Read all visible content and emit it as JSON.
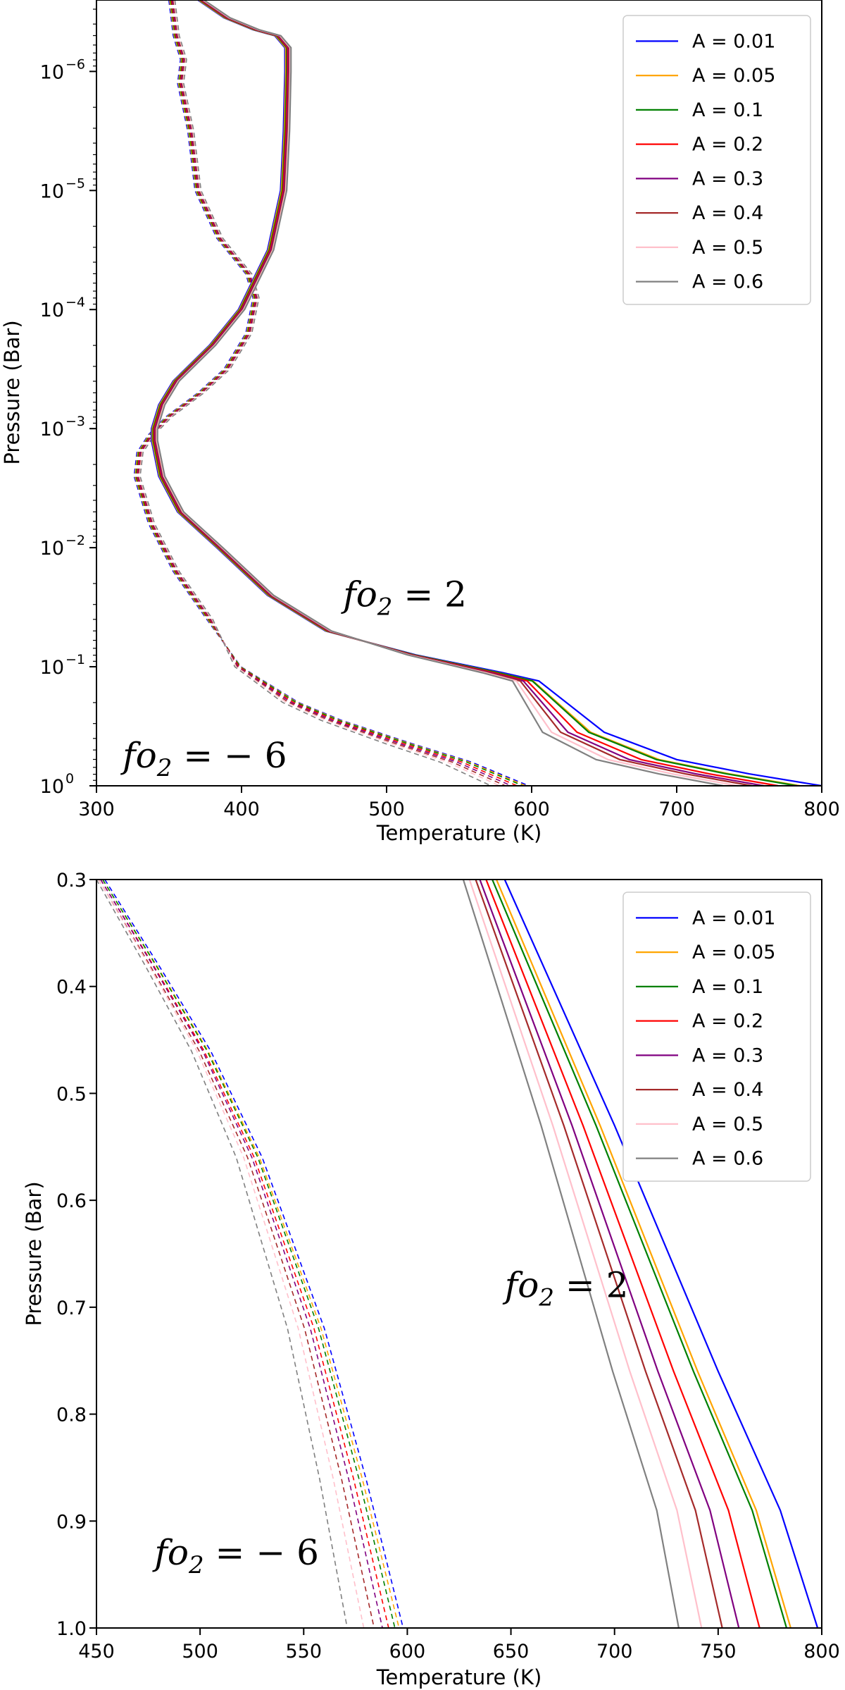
{
  "chart_data": [
    {
      "type": "line",
      "title": "",
      "xlabel": "Temperature (K)",
      "ylabel": "Pressure (Bar)",
      "xlim": [
        300,
        800
      ],
      "ylim_log10": [
        -6.6,
        0
      ],
      "yscale": "log",
      "xticks": [
        "300",
        "400",
        "500",
        "600",
        "700",
        "800"
      ],
      "yticks": [
        {
          "base": "10",
          "exp": "0",
          "log": 0
        },
        {
          "base": "10",
          "exp": "−1",
          "log": -1
        },
        {
          "base": "10",
          "exp": "−2",
          "log": -2
        },
        {
          "base": "10",
          "exp": "−3",
          "log": -3
        },
        {
          "base": "10",
          "exp": "−4",
          "log": -4
        },
        {
          "base": "10",
          "exp": "−5",
          "log": -5
        },
        {
          "base": "10",
          "exp": "−6",
          "log": -6
        }
      ],
      "legend": [
        "A = 0.01",
        "A = 0.05",
        "A = 0.1",
        "A = 0.2",
        "A = 0.3",
        "A = 0.4",
        "A = 0.5",
        "A = 0.6"
      ],
      "legend_position": "top-right",
      "annotations": [
        {
          "base": "fo",
          "sub": "2",
          "rest": " = 2",
          "at_x": 470,
          "at_logp": -1.6
        },
        {
          "base": "fo",
          "sub": "2",
          "rest": " = − 6",
          "at_x": 318,
          "at_logp": -0.25
        }
      ],
      "series_fo2_plus2": {
        "style": "solid",
        "profile": [
          [
            372,
            -6.6
          ],
          [
            390,
            -6.45
          ],
          [
            410,
            -6.35
          ],
          [
            425,
            -6.3
          ],
          [
            432,
            -6.2
          ],
          [
            432,
            -6.0
          ],
          [
            431,
            -5.5
          ],
          [
            429,
            -5.0
          ],
          [
            420,
            -4.5
          ],
          [
            400,
            -4.0
          ],
          [
            380,
            -3.7
          ],
          [
            355,
            -3.4
          ],
          [
            345,
            -3.2
          ],
          [
            340,
            -3.0
          ],
          [
            340,
            -2.9
          ],
          [
            345,
            -2.6
          ],
          [
            358,
            -2.3
          ],
          [
            385,
            -2.0
          ],
          [
            420,
            -1.6
          ],
          [
            460,
            -1.3
          ],
          [
            520,
            -1.1
          ],
          [
            580,
            -0.95
          ],
          [
            605,
            -0.88
          ],
          [
            650,
            -0.45
          ],
          [
            700,
            -0.22
          ],
          [
            750,
            -0.1
          ],
          [
            800,
            0
          ]
        ],
        "end_temperatures_at_1bar": [
          800,
          785,
          783,
          770,
          760,
          752,
          742,
          732
        ]
      },
      "series_fo2_minus6": {
        "style": "dashed",
        "profile": [
          [
            352,
            -6.6
          ],
          [
            355,
            -6.3
          ],
          [
            360,
            -6.1
          ],
          [
            358,
            -5.9
          ],
          [
            365,
            -5.5
          ],
          [
            370,
            -5.0
          ],
          [
            385,
            -4.6
          ],
          [
            405,
            -4.3
          ],
          [
            410,
            -4.1
          ],
          [
            405,
            -3.8
          ],
          [
            390,
            -3.5
          ],
          [
            372,
            -3.3
          ],
          [
            350,
            -3.1
          ],
          [
            338,
            -2.95
          ],
          [
            330,
            -2.8
          ],
          [
            328,
            -2.6
          ],
          [
            338,
            -2.2
          ],
          [
            355,
            -1.8
          ],
          [
            378,
            -1.4
          ],
          [
            400,
            -1.0
          ],
          [
            440,
            -0.7
          ],
          [
            470,
            -0.55
          ],
          [
            520,
            -0.35
          ],
          [
            560,
            -0.2
          ],
          [
            600,
            0
          ]
        ],
        "end_temperatures_at_1bar": [
          598,
          596,
          594,
          590,
          586,
          582,
          578,
          572
        ]
      }
    },
    {
      "type": "line",
      "title": "",
      "xlabel": "Temperature (K)",
      "ylabel": "Pressure (Bar)",
      "xlim": [
        450,
        800
      ],
      "ylim": [
        1.0,
        0.3
      ],
      "xticks": [
        "450",
        "500",
        "550",
        "600",
        "650",
        "700",
        "750",
        "800"
      ],
      "yticks": [
        "0.3",
        "0.4",
        "0.5",
        "0.6",
        "0.7",
        "0.8",
        "0.9",
        "1.0"
      ],
      "legend": [
        "A = 0.01",
        "A = 0.05",
        "A = 0.1",
        "A = 0.2",
        "A = 0.3",
        "A = 0.4",
        "A = 0.5",
        "A = 0.6"
      ],
      "legend_position": "top-right",
      "annotations": [
        {
          "base": "fo",
          "sub": "2",
          "rest": " = 2",
          "at_x": 647,
          "at_p": 0.68
        },
        {
          "base": "fo",
          "sub": "2",
          "rest": " = − 6",
          "at_x": 478,
          "at_p": 0.93
        }
      ],
      "series_fo2_plus2": {
        "style": "solid",
        "points_0_01": [
          [
            647,
            0.3
          ],
          [
            700,
            0.53
          ],
          [
            750,
            0.76
          ],
          [
            780,
            0.89
          ],
          [
            798,
            1.0
          ]
        ],
        "offsets_K": [
          0,
          -13,
          -15,
          -28,
          -38,
          -46,
          -56,
          -67
        ],
        "start_offsets_K": [
          0,
          -4,
          -6,
          -9,
          -12,
          -14,
          -17,
          -20
        ]
      },
      "series_fo2_minus6": {
        "style": "dashed",
        "points_0_01": [
          [
            454,
            0.3
          ],
          [
            480,
            0.38
          ],
          [
            505,
            0.46
          ],
          [
            530,
            0.56
          ],
          [
            560,
            0.72
          ],
          [
            580,
            0.86
          ],
          [
            598,
            1.0
          ]
        ],
        "offsets_K": [
          0,
          -2,
          -4,
          -7,
          -10,
          -14,
          -19,
          -27
        ],
        "start_offsets_K": [
          0,
          -1,
          -1,
          -2,
          -2,
          -3,
          -3,
          -4
        ]
      }
    }
  ],
  "colors": [
    "#0000ff",
    "#ffa500",
    "#008000",
    "#ff0000",
    "#800080",
    "#a52a2a",
    "#ffc0cb",
    "#808080"
  ]
}
